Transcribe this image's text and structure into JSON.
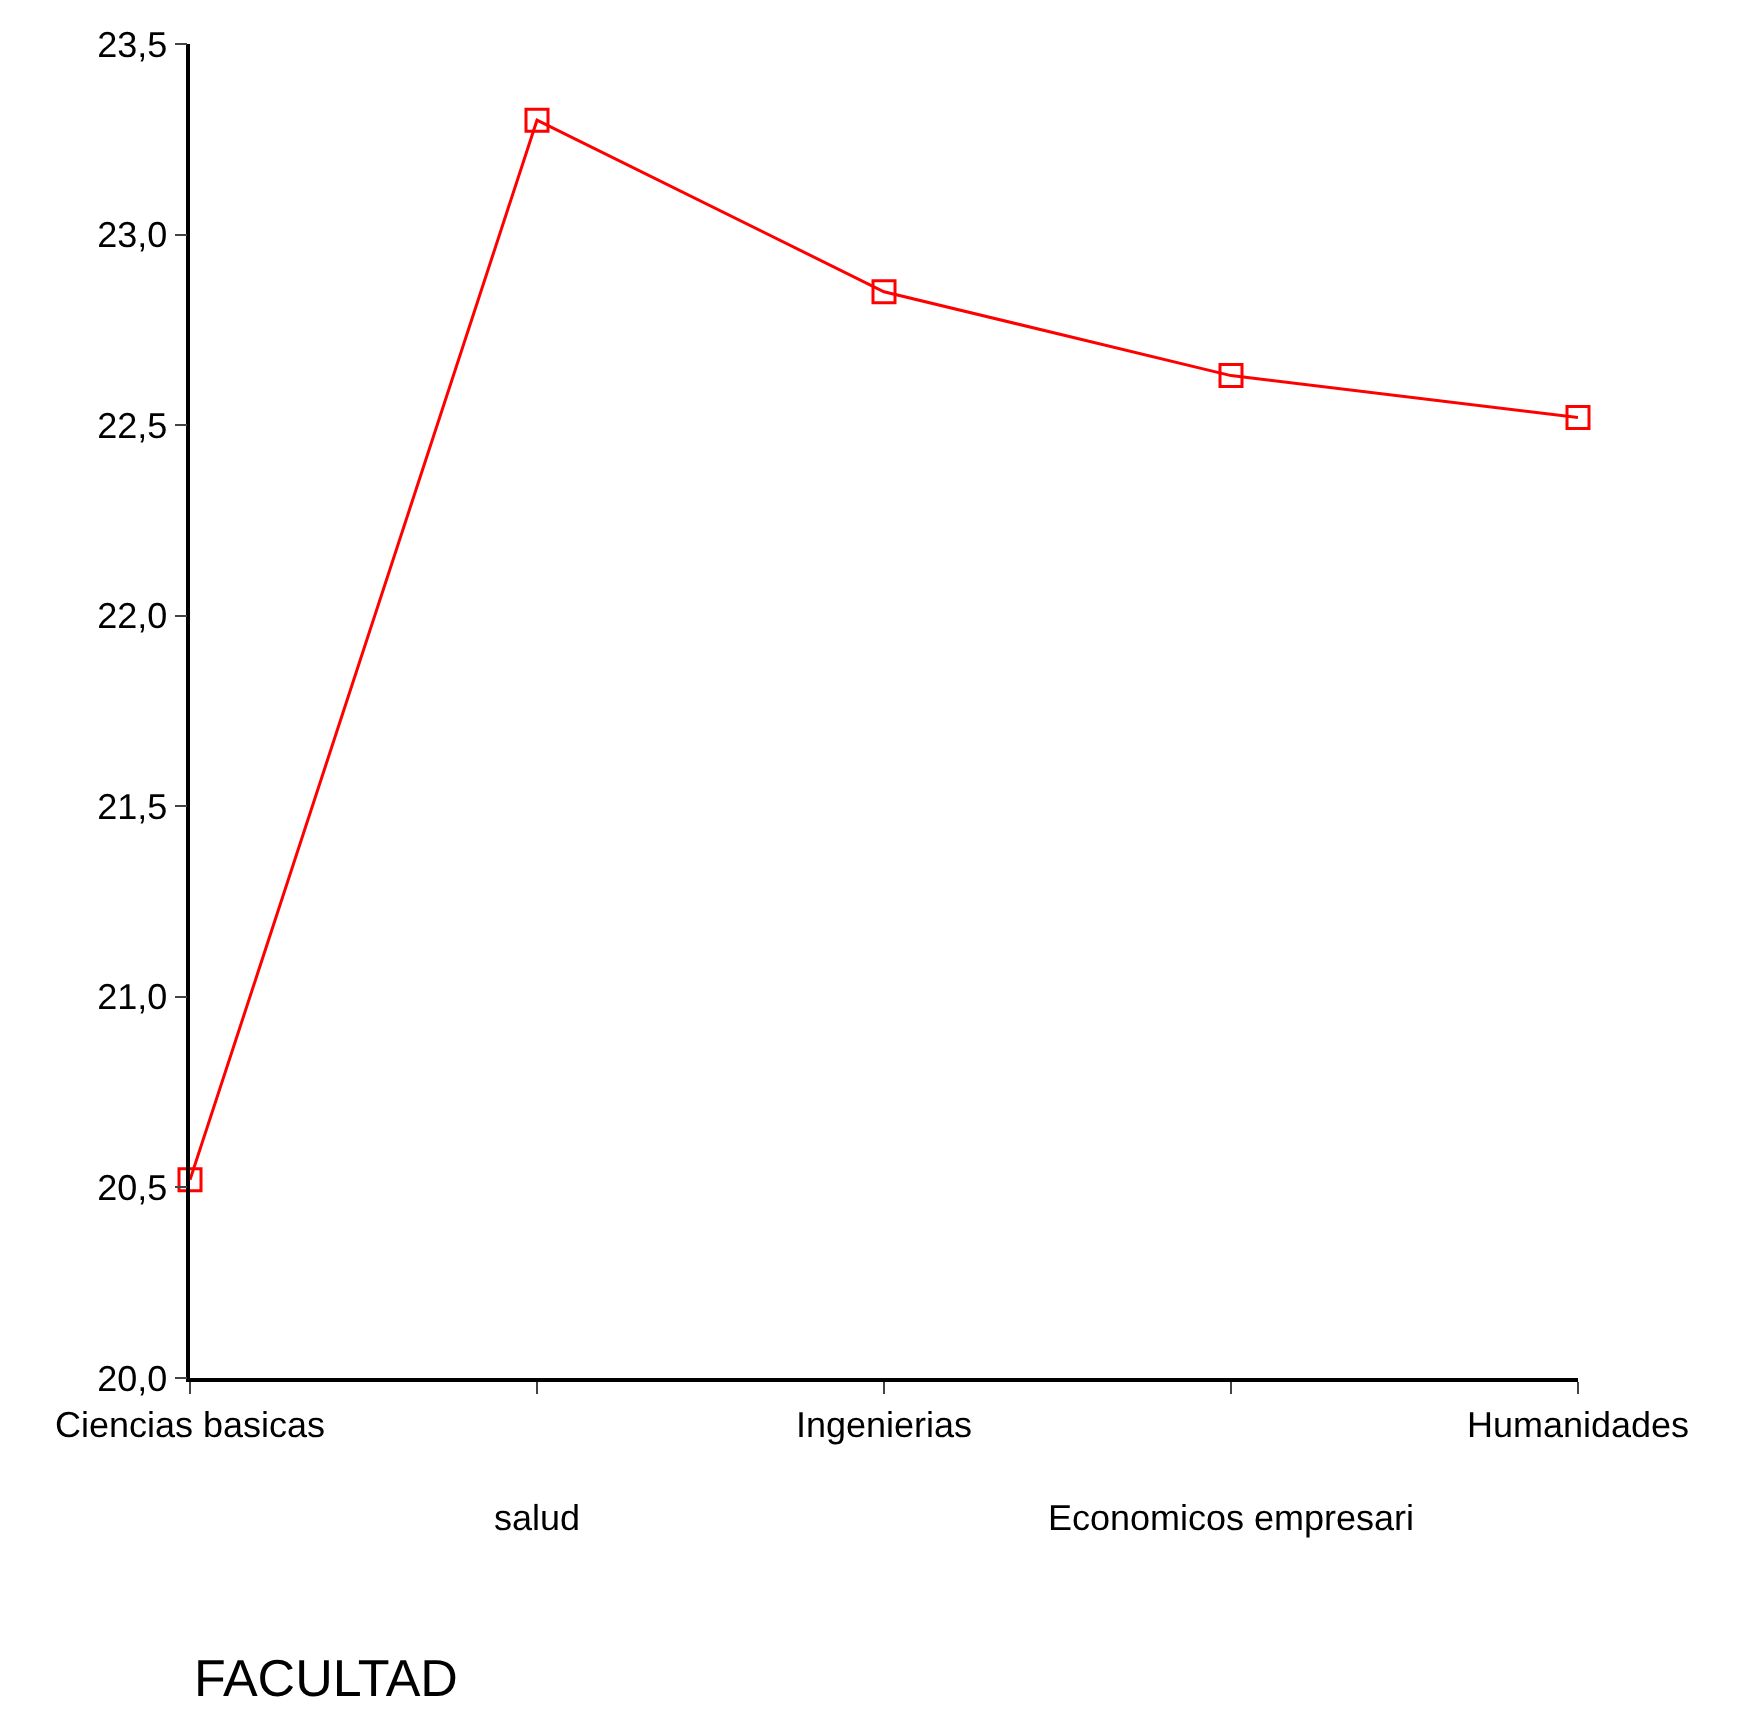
{
  "chart_data": {
    "type": "line",
    "xlabel": "FACULTAD",
    "categories": [
      "Ciencias basicas",
      "salud",
      "Ingenierias",
      "Economicos empresari",
      "Humanidades"
    ],
    "series": [
      {
        "color": "#ff0000",
        "values": [
          20.52,
          23.3,
          22.85,
          22.63,
          22.52
        ]
      }
    ],
    "ylim": [
      20.0,
      23.5
    ],
    "yticks": [
      {
        "value": 20.0,
        "label": "20,0"
      },
      {
        "value": 20.5,
        "label": "20,5"
      },
      {
        "value": 21.0,
        "label": "21,0"
      },
      {
        "value": 21.5,
        "label": "21,5"
      },
      {
        "value": 22.0,
        "label": "22,0"
      },
      {
        "value": 22.5,
        "label": "22,5"
      },
      {
        "value": 23.0,
        "label": "23,0"
      },
      {
        "value": 23.5,
        "label": "23,5"
      }
    ],
    "marker": "square",
    "line_style": "solid"
  }
}
